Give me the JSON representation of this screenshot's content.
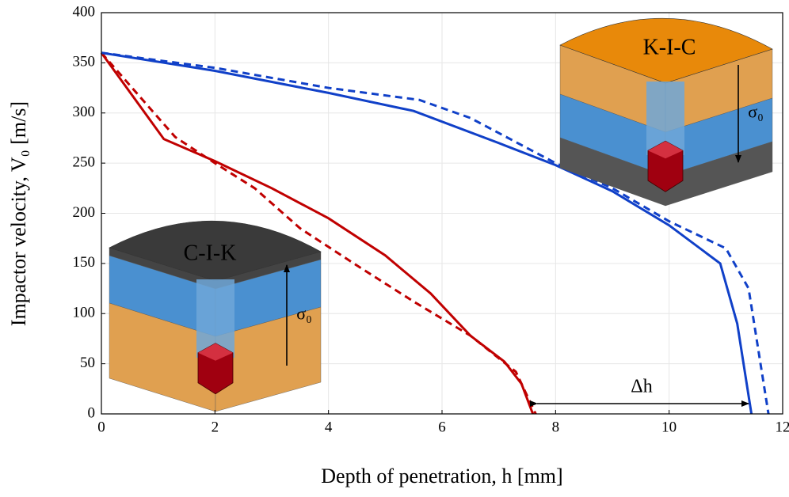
{
  "chart_data": {
    "type": "line",
    "xlabel": "Depth of penetration, h [mm]",
    "ylabel": "Impactor velocity, V₀ [m/s]",
    "xlim": [
      0,
      12
    ],
    "xticks": [
      0,
      2,
      4,
      6,
      8,
      10,
      12
    ],
    "ylim": [
      0,
      400
    ],
    "yticks": [
      0,
      50,
      100,
      150,
      200,
      250,
      300,
      350,
      400
    ],
    "grid": true,
    "series": [
      {
        "color": "#c00000",
        "dash": false,
        "x": [
          0,
          1.1,
          2,
          3,
          4,
          5,
          5.8,
          6.5,
          7.1,
          7.4,
          7.6
        ],
        "values": [
          360,
          274,
          252,
          225,
          195,
          158,
          120,
          78,
          52,
          30,
          0
        ]
      },
      {
        "color": "#c00000",
        "dash": true,
        "x": [
          0,
          1.3,
          2,
          2.7,
          3.5,
          4.5,
          5.5,
          6.5,
          7.3,
          7.65
        ],
        "values": [
          360,
          276,
          250,
          225,
          185,
          148,
          112,
          78,
          42,
          0
        ]
      },
      {
        "color": "#1040c8",
        "dash": false,
        "x": [
          0,
          2,
          4,
          5.5,
          7,
          8,
          9,
          10,
          10.9,
          11.2,
          11.45
        ],
        "values": [
          360,
          342,
          320,
          302,
          270,
          248,
          222,
          188,
          150,
          90,
          0
        ]
      },
      {
        "color": "#1040c8",
        "dash": true,
        "x": [
          0,
          2,
          4,
          5.6,
          6.5,
          8,
          9,
          10,
          11,
          11.4,
          11.75
        ],
        "values": [
          360,
          345,
          325,
          313,
          295,
          250,
          225,
          192,
          165,
          125,
          0
        ]
      }
    ],
    "annotations": {
      "kic": "K-I-C",
      "cik": "C-I-K",
      "sigma_kic": "σ₀",
      "sigma_cik": "σ₀",
      "delta_h": "Δh"
    }
  }
}
